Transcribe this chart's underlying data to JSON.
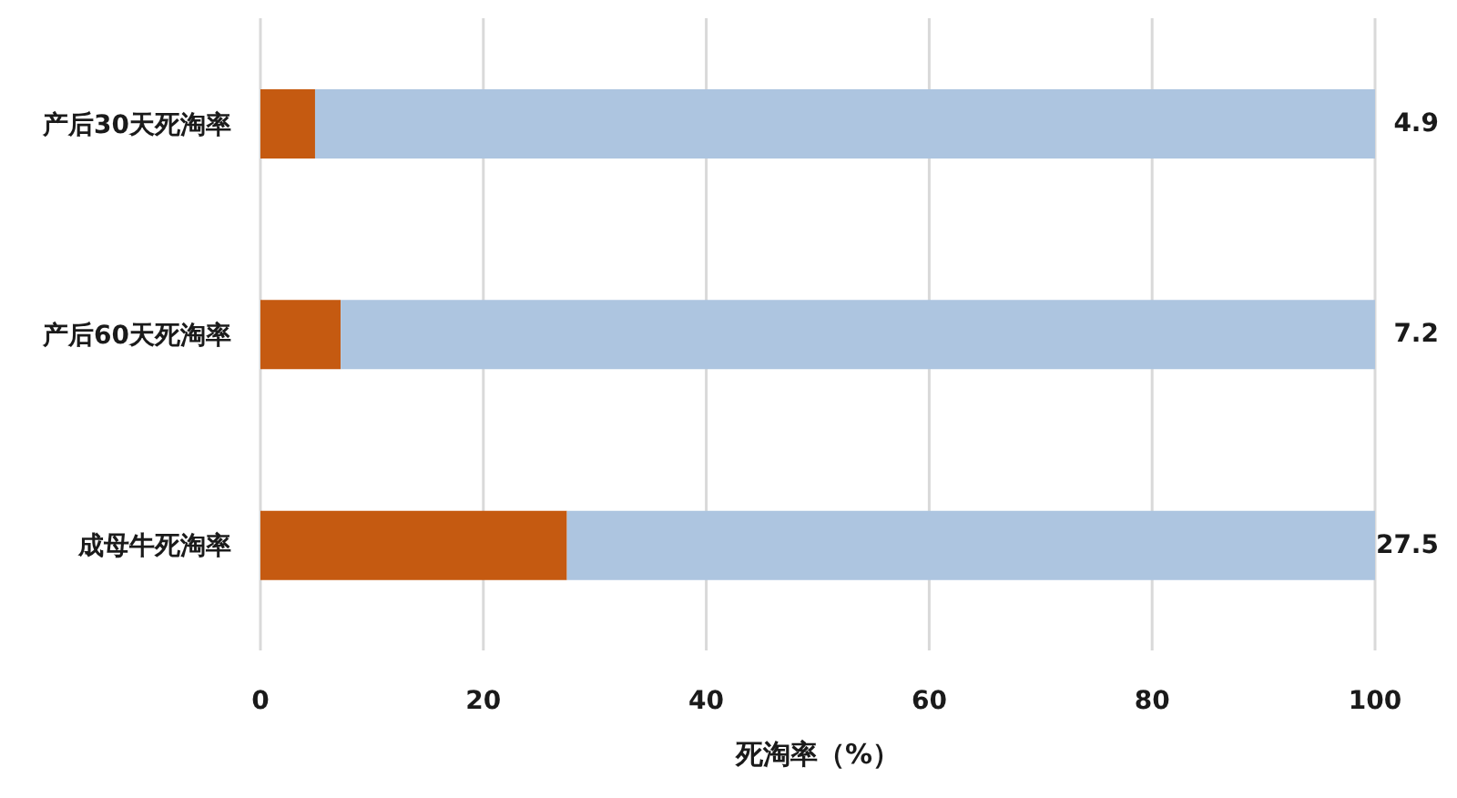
{
  "chart_data": {
    "type": "bar",
    "orientation": "horizontal",
    "stacked": true,
    "categories": [
      "产后30天死淘率",
      "产后60天死淘率",
      "成母牛死淘率"
    ],
    "series": [
      {
        "color": "#c55a11",
        "values": [
          4.9,
          7.2,
          27.5
        ],
        "value_labels": [
          "4.9",
          "7.2",
          "27.5"
        ]
      },
      {
        "color": "#adc5e0",
        "values": [
          95.1,
          92.8,
          72.5
        ]
      }
    ],
    "xlabel": "死淘率（%）",
    "xlim": [
      0,
      100
    ],
    "xticks": [
      0,
      20,
      40,
      60,
      80,
      100
    ],
    "grid": "x"
  }
}
